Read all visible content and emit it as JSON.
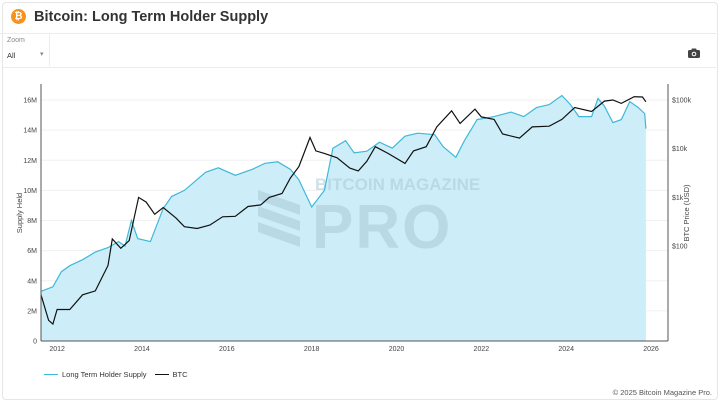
{
  "header": {
    "title": "Bitcoin: Long Term Holder Supply",
    "logo_glyph": "₿"
  },
  "zoom": {
    "label": "Zoom",
    "value": "All"
  },
  "toolbar": {
    "camera_icon": "camera-icon"
  },
  "watermark": {
    "top_text": "BITCOIN MAGAZINE",
    "main_text": "PRO"
  },
  "legend": [
    {
      "label": "Long Term Holder Supply",
      "color": "#3fb8d8"
    },
    {
      "label": "BTC",
      "color": "#111111"
    }
  ],
  "footer": {
    "copyright": "© 2025 Bitcoin Magazine Pro."
  },
  "chart_data": {
    "type": "area",
    "title": "Bitcoin: Long Term Holder Supply",
    "xlabel": "",
    "ylabel": "Supply Held",
    "y2label": "BTC Price (USD)",
    "xlim": [
      2011.62,
      2026.4
    ],
    "ylim": [
      0,
      17
    ],
    "y2lim_log10": [
      0,
      5.3
    ],
    "x_ticks": [
      "2012",
      "2014",
      "2016",
      "2018",
      "2020",
      "2022",
      "2024",
      "2026"
    ],
    "x_tick_values": [
      2012,
      2014,
      2016,
      2018,
      2020,
      2022,
      2024,
      2026
    ],
    "y_ticks": [
      "0",
      "2M",
      "4M",
      "6M",
      "8M",
      "10M",
      "12M",
      "14M",
      "16M"
    ],
    "y_tick_values": [
      0,
      2,
      4,
      6,
      8,
      10,
      12,
      14,
      16
    ],
    "y2_ticks": [
      "$100",
      "$1k",
      "$10k",
      "$100k"
    ],
    "y2_tick_values": [
      100,
      1000,
      10000,
      100000
    ],
    "grid": true,
    "legend_position": "bottom-left",
    "series": [
      {
        "name": "Long Term Holder Supply",
        "axis": "left",
        "unit": "M BTC",
        "fill": true,
        "points": [
          [
            2011.62,
            3.3
          ],
          [
            2011.9,
            3.6
          ],
          [
            2012.1,
            4.6
          ],
          [
            2012.3,
            5.0
          ],
          [
            2012.6,
            5.4
          ],
          [
            2012.9,
            5.9
          ],
          [
            2013.2,
            6.2
          ],
          [
            2013.45,
            6.6
          ],
          [
            2013.6,
            6.3
          ],
          [
            2013.75,
            8.0
          ],
          [
            2013.9,
            6.8
          ],
          [
            2014.2,
            6.6
          ],
          [
            2014.5,
            8.8
          ],
          [
            2014.7,
            9.6
          ],
          [
            2015.0,
            10.0
          ],
          [
            2015.5,
            11.2
          ],
          [
            2015.8,
            11.5
          ],
          [
            2016.2,
            11.0
          ],
          [
            2016.6,
            11.4
          ],
          [
            2016.9,
            11.8
          ],
          [
            2017.2,
            11.9
          ],
          [
            2017.5,
            11.4
          ],
          [
            2017.7,
            10.7
          ],
          [
            2018.0,
            8.9
          ],
          [
            2018.3,
            10.0
          ],
          [
            2018.5,
            12.8
          ],
          [
            2018.8,
            13.3
          ],
          [
            2019.0,
            12.5
          ],
          [
            2019.3,
            12.6
          ],
          [
            2019.6,
            13.2
          ],
          [
            2019.9,
            12.8
          ],
          [
            2020.2,
            13.6
          ],
          [
            2020.5,
            13.8
          ],
          [
            2020.9,
            13.7
          ],
          [
            2021.1,
            12.9
          ],
          [
            2021.4,
            12.2
          ],
          [
            2021.6,
            13.3
          ],
          [
            2021.9,
            14.7
          ],
          [
            2022.3,
            14.9
          ],
          [
            2022.7,
            15.2
          ],
          [
            2023.0,
            14.9
          ],
          [
            2023.3,
            15.5
          ],
          [
            2023.6,
            15.7
          ],
          [
            2023.9,
            16.3
          ],
          [
            2024.1,
            15.7
          ],
          [
            2024.3,
            14.9
          ],
          [
            2024.6,
            14.9
          ],
          [
            2024.75,
            16.1
          ],
          [
            2024.9,
            15.6
          ],
          [
            2025.1,
            14.5
          ],
          [
            2025.3,
            14.7
          ],
          [
            2025.5,
            15.9
          ],
          [
            2025.7,
            15.5
          ],
          [
            2025.85,
            15.1
          ],
          [
            2025.88,
            14.1
          ]
        ]
      },
      {
        "name": "BTC",
        "axis": "right",
        "unit": "USD",
        "scale": "log",
        "points": [
          [
            2011.62,
            10
          ],
          [
            2011.8,
            3
          ],
          [
            2011.9,
            2.5
          ],
          [
            2012.0,
            5
          ],
          [
            2012.3,
            5
          ],
          [
            2012.6,
            10
          ],
          [
            2012.9,
            12
          ],
          [
            2013.2,
            40
          ],
          [
            2013.3,
            140
          ],
          [
            2013.5,
            90
          ],
          [
            2013.7,
            130
          ],
          [
            2013.92,
            1000
          ],
          [
            2014.1,
            800
          ],
          [
            2014.3,
            450
          ],
          [
            2014.5,
            620
          ],
          [
            2014.8,
            380
          ],
          [
            2015.0,
            250
          ],
          [
            2015.3,
            230
          ],
          [
            2015.6,
            270
          ],
          [
            2015.9,
            400
          ],
          [
            2016.2,
            410
          ],
          [
            2016.5,
            650
          ],
          [
            2016.8,
            700
          ],
          [
            2017.0,
            1000
          ],
          [
            2017.3,
            1200
          ],
          [
            2017.5,
            2500
          ],
          [
            2017.7,
            4300
          ],
          [
            2017.96,
            17000
          ],
          [
            2018.1,
            9000
          ],
          [
            2018.3,
            8000
          ],
          [
            2018.6,
            6500
          ],
          [
            2018.9,
            4000
          ],
          [
            2019.1,
            3500
          ],
          [
            2019.3,
            5500
          ],
          [
            2019.5,
            11000
          ],
          [
            2019.8,
            8000
          ],
          [
            2020.2,
            5000
          ],
          [
            2020.4,
            9000
          ],
          [
            2020.7,
            11000
          ],
          [
            2020.95,
            28000
          ],
          [
            2021.3,
            60000
          ],
          [
            2021.5,
            33000
          ],
          [
            2021.85,
            65000
          ],
          [
            2022.0,
            45000
          ],
          [
            2022.3,
            40000
          ],
          [
            2022.5,
            20000
          ],
          [
            2022.9,
            16500
          ],
          [
            2023.2,
            28000
          ],
          [
            2023.6,
            29000
          ],
          [
            2023.9,
            40000
          ],
          [
            2024.2,
            70000
          ],
          [
            2024.6,
            58000
          ],
          [
            2024.9,
            95000
          ],
          [
            2025.1,
            100000
          ],
          [
            2025.3,
            85000
          ],
          [
            2025.6,
            117000
          ],
          [
            2025.8,
            115000
          ],
          [
            2025.88,
            92000
          ]
        ]
      }
    ]
  }
}
